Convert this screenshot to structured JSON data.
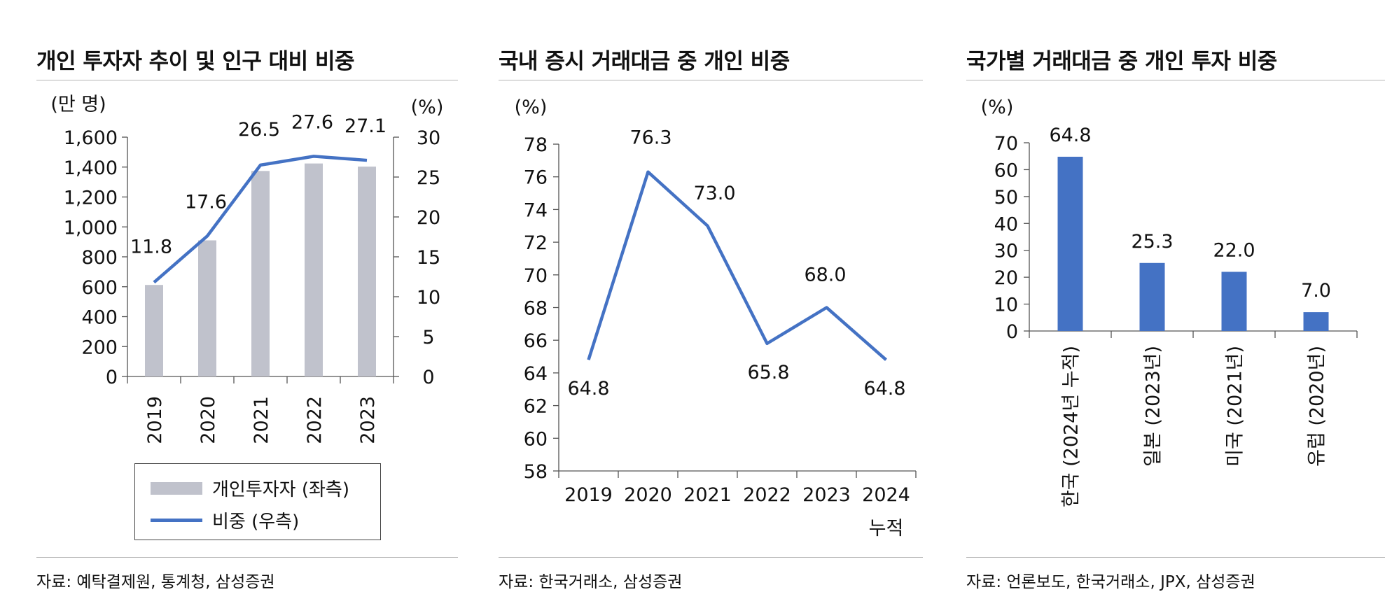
{
  "colors": {
    "bar_gray": "#c0c2cc",
    "line_blue": "#4472c4",
    "bar_blue": "#4472c4"
  },
  "panels": [
    {
      "title": "개인 투자자 추이 및 인구 대비 비중",
      "source": "자료: 예탁결제원, 통계청, 삼성증권"
    },
    {
      "title": "국내 증시 거래대금 중 개인 비중",
      "source": "자료: 한국거래소, 삼성증권"
    },
    {
      "title": "국가별 거래대금 중 개인 투자 비중",
      "source": "자료: 언론보도, 한국거래소, JPX, 삼성증권"
    }
  ],
  "chart_data": [
    {
      "type": "bar",
      "title": "개인 투자자 추이 및 인구 대비 비중",
      "categories": [
        "2019",
        "2020",
        "2021",
        "2022",
        "2023"
      ],
      "left_axis": {
        "unit": "(만 명)",
        "ylim": [
          0,
          1600
        ],
        "ticks": [
          0,
          200,
          400,
          600,
          800,
          1000,
          1200,
          1400,
          1600
        ],
        "tick_labels": [
          "0",
          "200",
          "400",
          "600",
          "800",
          "1,000",
          "1,200",
          "1,400",
          "1,600"
        ]
      },
      "right_axis": {
        "unit": "(%)",
        "ylim": [
          0,
          30
        ],
        "ticks": [
          0,
          5,
          10,
          15,
          20,
          25,
          30
        ],
        "tick_labels": [
          "0",
          "5",
          "10",
          "15",
          "20",
          "25",
          "30"
        ]
      },
      "series": [
        {
          "name": "개인투자자 (좌측)",
          "type": "bar",
          "axis": "left",
          "values": [
            612,
            910,
            1374,
            1424,
            1403
          ]
        },
        {
          "name": "비중 (우측)",
          "type": "line",
          "axis": "right",
          "values": [
            11.8,
            17.6,
            26.5,
            27.6,
            27.1
          ],
          "labels": [
            "11.8",
            "17.6",
            "26.5",
            "27.6",
            "27.1"
          ]
        }
      ],
      "legend": [
        "개인투자자 (좌측)",
        "비중 (우측)"
      ]
    },
    {
      "type": "line",
      "title": "국내 증시 거래대금 중 개인 비중",
      "categories": [
        "2019",
        "2020",
        "2021",
        "2022",
        "2023",
        "2024\n누적"
      ],
      "category_lines": [
        [
          "2019"
        ],
        [
          "2020"
        ],
        [
          "2021"
        ],
        [
          "2022"
        ],
        [
          "2023"
        ],
        [
          "2024",
          "누적"
        ]
      ],
      "y_axis": {
        "unit": "(%)",
        "ylim": [
          58,
          78
        ],
        "ticks": [
          58,
          60,
          62,
          64,
          66,
          68,
          70,
          72,
          74,
          76,
          78
        ],
        "tick_labels": [
          "58",
          "60",
          "62",
          "64",
          "66",
          "68",
          "70",
          "72",
          "74",
          "76",
          "78"
        ]
      },
      "series": [
        {
          "name": "개인 비중",
          "values": [
            64.8,
            76.3,
            73.0,
            65.8,
            68.0,
            64.8
          ],
          "labels": [
            "64.8",
            "76.3",
            "73.0",
            "65.8",
            "68.0",
            "64.8"
          ]
        }
      ]
    },
    {
      "type": "bar",
      "title": "국가별 거래대금 중 개인 투자 비중",
      "categories": [
        "한국 (2024년 누적)",
        "일본 (2023년)",
        "미국 (2021년)",
        "유럽 (2020년)"
      ],
      "y_axis": {
        "unit": "(%)",
        "ylim": [
          0,
          70
        ],
        "ticks": [
          0,
          10,
          20,
          30,
          40,
          50,
          60,
          70
        ],
        "tick_labels": [
          "0",
          "10",
          "20",
          "30",
          "40",
          "50",
          "60",
          "70"
        ]
      },
      "series": [
        {
          "name": "개인 투자 비중",
          "values": [
            64.8,
            25.3,
            22.0,
            7.0
          ],
          "labels": [
            "64.8",
            "25.3",
            "22.0",
            "7.0"
          ]
        }
      ]
    }
  ]
}
